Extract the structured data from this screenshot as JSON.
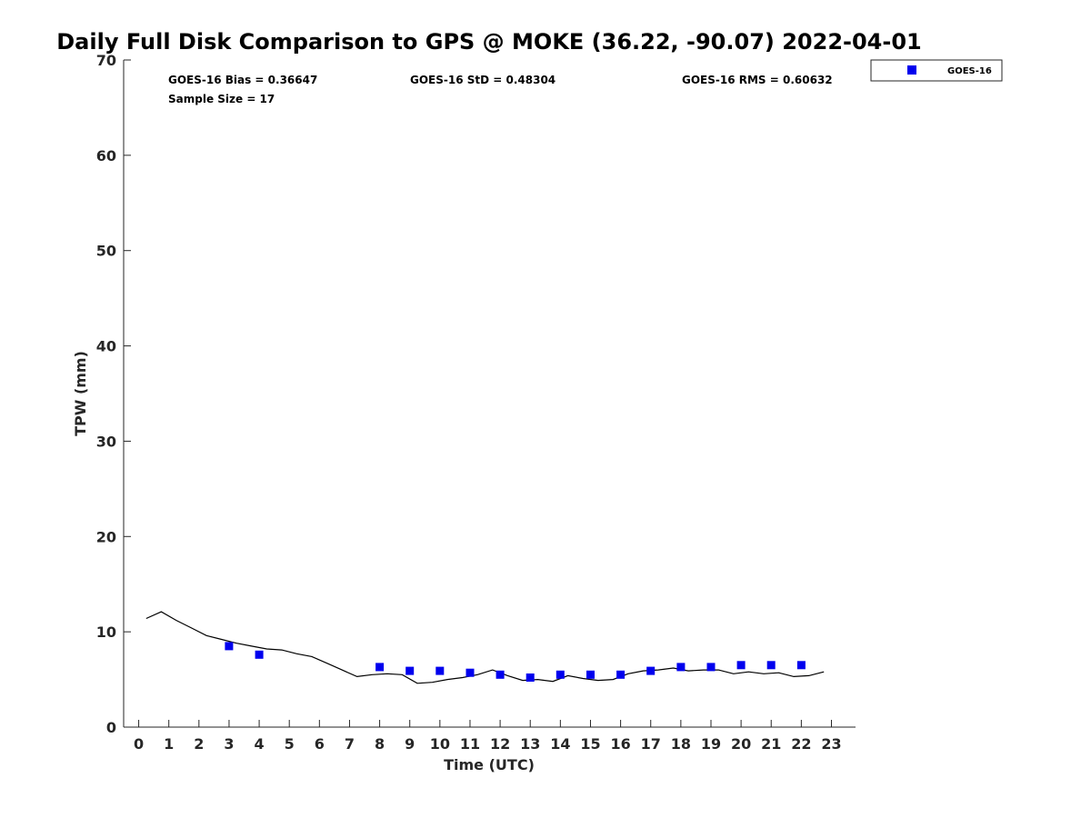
{
  "chart_data": {
    "type": "scatter",
    "title": "Daily Full Disk Comparison to GPS @ MOKE (36.22, -90.07) 2022-04-01",
    "xlabel": "Time (UTC)",
    "ylabel": "TPW (mm)",
    "xlim": [
      -0.5,
      23.8
    ],
    "ylim": [
      0,
      70
    ],
    "x_ticks": [
      "0",
      "1",
      "2",
      "3",
      "4",
      "5",
      "6",
      "7",
      "8",
      "9",
      "10",
      "11",
      "12",
      "13",
      "14",
      "15",
      "16",
      "17",
      "18",
      "19",
      "20",
      "21",
      "22",
      "23"
    ],
    "y_ticks": [
      "0",
      "10",
      "20",
      "30",
      "40",
      "50",
      "60",
      "70"
    ],
    "grid": false,
    "legend": {
      "placement": "top-right",
      "entries": [
        "GOES-16"
      ]
    },
    "stats": {
      "bias": "GOES-16 Bias = 0.36647",
      "std": "GOES-16 StD = 0.48304",
      "rms": "GOES-16 RMS = 0.60632",
      "sample_size": "Sample Size = 17"
    },
    "series": [
      {
        "name": "GOES-16",
        "kind": "scatter",
        "color": "#0000ee",
        "x": [
          3,
          4,
          8,
          9,
          10,
          11,
          12,
          13,
          14,
          15,
          16,
          17,
          18,
          19,
          20,
          21,
          22
        ],
        "y": [
          8.5,
          7.6,
          6.3,
          5.9,
          5.9,
          5.7,
          5.5,
          5.2,
          5.5,
          5.5,
          5.5,
          5.9,
          6.3,
          6.3,
          6.5,
          6.5,
          6.5
        ]
      },
      {
        "kind": "line",
        "color": "#000000",
        "x": [
          0.25,
          0.75,
          1.25,
          1.75,
          2.25,
          2.75,
          3.25,
          3.75,
          4.25,
          4.75,
          5.25,
          5.75,
          6.25,
          6.75,
          7.25,
          7.75,
          8.25,
          8.75,
          9.25,
          9.75,
          10.25,
          10.75,
          11.25,
          11.75,
          12.25,
          12.75,
          13.25,
          13.75,
          14.25,
          14.75,
          15.25,
          15.75,
          16.25,
          16.75,
          17.25,
          17.75,
          18.25,
          18.75,
          19.25,
          19.75,
          20.25,
          20.75,
          21.25,
          21.75,
          22.25,
          22.75
        ],
        "y": [
          11.4,
          12.1,
          11.2,
          10.4,
          9.6,
          9.2,
          8.8,
          8.5,
          8.2,
          8.1,
          7.7,
          7.4,
          6.7,
          6.0,
          5.3,
          5.5,
          5.6,
          5.5,
          4.6,
          4.7,
          5.0,
          5.2,
          5.5,
          6.0,
          5.4,
          4.9,
          5.0,
          4.8,
          5.4,
          5.1,
          4.9,
          5.0,
          5.6,
          5.9,
          6.0,
          6.2,
          5.9,
          6.0,
          6.0,
          5.6,
          5.8,
          5.6,
          5.7,
          5.3,
          5.4,
          5.8
        ]
      }
    ]
  }
}
